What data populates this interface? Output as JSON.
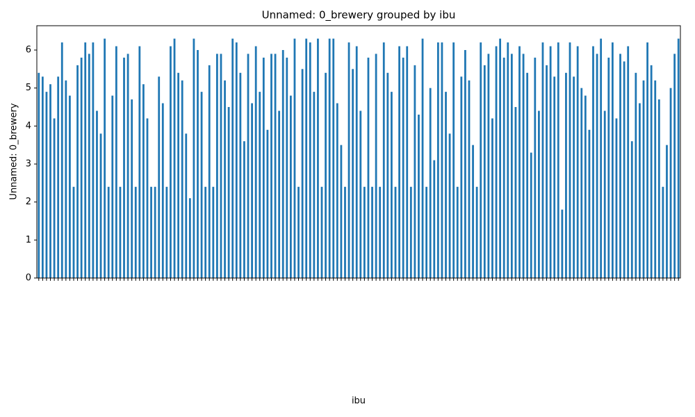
{
  "chart_data": {
    "type": "bar",
    "title": "Unnamed: 0_brewery grouped by ibu",
    "xlabel": "ibu",
    "ylabel": "Unnamed: 0_brewery",
    "color": "#1f77b4",
    "ylim": [
      0,
      6.64
    ],
    "yticks": [
      0,
      1,
      2,
      3,
      4,
      5,
      6
    ],
    "values": [
      5.4,
      5.3,
      4.9,
      5.1,
      4.2,
      5.3,
      6.2,
      5.2,
      4.8,
      2.4,
      5.6,
      5.8,
      6.2,
      5.9,
      6.2,
      4.4,
      3.8,
      6.3,
      2.4,
      4.8,
      6.1,
      2.4,
      5.8,
      5.9,
      4.7,
      2.4,
      6.1,
      5.1,
      4.2,
      2.4,
      2.4,
      5.3,
      4.6,
      2.4,
      6.1,
      6.3,
      5.4,
      5.2,
      3.8,
      2.1,
      6.3,
      6.0,
      4.9,
      2.4,
      5.6,
      2.4,
      5.9,
      5.9,
      5.2,
      4.5,
      6.3,
      6.2,
      5.4,
      3.6,
      5.9,
      4.6,
      6.1,
      4.9,
      5.8,
      3.9,
      5.9,
      5.9,
      4.4,
      6.0,
      5.8,
      4.8,
      6.3,
      2.4,
      5.5,
      6.3,
      6.2,
      4.9,
      6.3,
      2.4,
      5.4,
      6.3,
      6.3,
      4.6,
      3.5,
      2.4,
      6.2,
      5.5,
      6.1,
      4.4,
      2.4,
      5.8,
      2.4,
      5.9,
      2.4,
      6.2,
      5.4,
      4.9,
      2.4,
      6.1,
      5.8,
      6.1,
      2.4,
      5.6,
      4.3,
      6.3,
      2.4,
      5.0,
      3.1,
      6.2,
      6.2,
      4.9,
      3.8,
      6.2,
      2.4,
      5.3,
      6.0,
      5.2,
      3.5,
      2.4,
      6.2,
      5.6,
      5.9,
      4.2,
      6.1,
      6.3,
      5.8,
      6.2,
      5.9,
      4.5,
      6.1,
      5.9,
      5.4,
      3.3,
      5.8,
      4.4,
      6.2,
      5.6,
      6.1,
      5.3,
      6.2,
      1.8,
      5.4,
      6.2,
      5.3,
      6.1,
      5.0,
      4.8,
      3.9,
      6.1,
      5.9,
      6.3,
      4.4,
      5.8,
      6.2,
      4.2,
      5.9,
      5.7,
      6.1,
      3.6,
      5.4,
      4.6,
      5.2,
      6.2,
      5.6,
      5.2,
      4.7,
      2.4,
      3.5,
      5.0,
      5.9,
      6.3
    ]
  }
}
